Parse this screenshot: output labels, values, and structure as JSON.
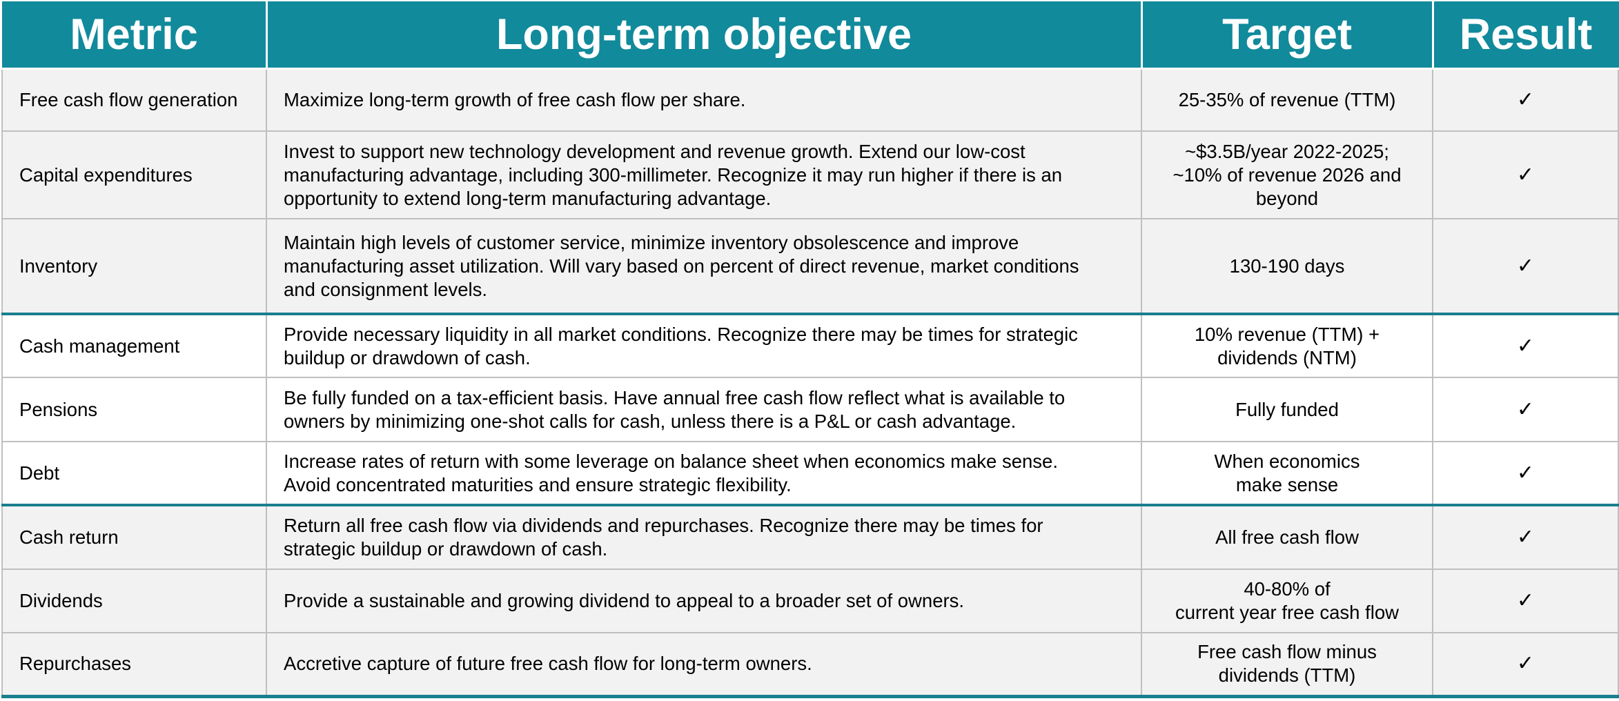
{
  "headers": {
    "metric": "Metric",
    "objective": "Long-term objective",
    "target": "Target",
    "result": "Result"
  },
  "rows": [
    {
      "metric": "Free cash flow generation",
      "objective": [
        "Maximize long-term growth of free cash flow per share."
      ],
      "target": [
        "25-35% of revenue (TTM)"
      ],
      "result": "✓"
    },
    {
      "metric": "Capital expenditures",
      "objective": [
        "Invest to support new technology development and revenue growth. Extend our low-cost",
        "manufacturing advantage, including 300-millimeter. Recognize it may run higher if there is an",
        "opportunity to extend long-term manufacturing advantage."
      ],
      "target": [
        "~$3.5B/year 2022-2025;",
        "~10% of revenue 2026 and",
        "beyond"
      ],
      "result": "✓"
    },
    {
      "metric": "Inventory",
      "objective": [
        "Maintain high levels of customer service, minimize inventory obsolescence and improve",
        "manufacturing asset utilization. Will vary based on percent of direct revenue, market conditions",
        "and consignment levels."
      ],
      "target": [
        "130-190 days"
      ],
      "result": "✓"
    },
    {
      "metric": "Cash management",
      "objective": [
        "Provide necessary liquidity in all market conditions. Recognize there may be times for strategic",
        "buildup or drawdown of cash."
      ],
      "target": [
        "10% revenue (TTM) +",
        "dividends (NTM)"
      ],
      "result": "✓"
    },
    {
      "metric": "Pensions",
      "objective": [
        "Be fully funded on a tax-efficient basis. Have annual free cash flow reflect what is available to",
        "owners by minimizing one-shot calls for cash, unless there is a P&L or cash advantage."
      ],
      "target": [
        "Fully funded"
      ],
      "result": "✓"
    },
    {
      "metric": "Debt",
      "objective": [
        "Increase rates of return with some leverage on balance sheet when economics make sense.",
        "Avoid concentrated maturities and ensure strategic flexibility."
      ],
      "target": [
        "When economics",
        "make sense"
      ],
      "result": "✓"
    },
    {
      "metric": "Cash return",
      "objective": [
        "Return all free cash flow via dividends and repurchases. Recognize there may be times for",
        "strategic buildup or drawdown of cash."
      ],
      "target": [
        "All free cash flow"
      ],
      "result": "✓"
    },
    {
      "metric": "Dividends",
      "objective": [
        "Provide a sustainable and growing dividend to appeal to a broader set of owners."
      ],
      "target": [
        "40-80% of",
        "current year free cash flow"
      ],
      "result": "✓"
    },
    {
      "metric": "Repurchases",
      "objective": [
        "Accretive capture of future free cash flow for long-term owners."
      ],
      "target": [
        "Free cash flow minus",
        "dividends (TTM)"
      ],
      "result": "✓"
    }
  ]
}
